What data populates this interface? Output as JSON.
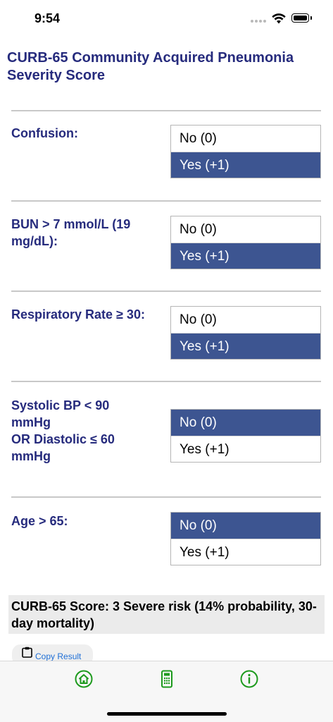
{
  "status": {
    "time": "9:54"
  },
  "title": "CURB-65 Community Acquired Pneumonia Severity Score",
  "questions": [
    {
      "label": "Confusion:",
      "options": [
        "No (0)",
        "Yes (+1)"
      ],
      "selected": 1
    },
    {
      "label": "BUN > 7 mmol/L (19 mg/dL):",
      "options": [
        "No (0)",
        "Yes (+1)"
      ],
      "selected": 1
    },
    {
      "label": "Respiratory Rate ≥ 30:",
      "options": [
        "No (0)",
        "Yes (+1)"
      ],
      "selected": 1
    },
    {
      "label": "Systolic BP < 90 mmHg OR Diastolic ≤ 60 mmHg",
      "label_lines": [
        "Systolic BP < 90",
        "mmHg",
        "OR Diastolic ≤ 60",
        "mmHg"
      ],
      "options": [
        "No (0)",
        "Yes (+1)"
      ],
      "selected": 0
    },
    {
      "label": "Age > 65:",
      "options": [
        "No (0)",
        "Yes (+1)"
      ],
      "selected": 0
    }
  ],
  "result": {
    "text": "CURB-65 Score: 3 Severe risk (14% probability, 30-day mortality)"
  },
  "copy_button": {
    "label": "Copy Result",
    "icon": "clipboard-icon"
  },
  "tab_bar": {
    "items": [
      {
        "name": "home",
        "icon": "home-icon"
      },
      {
        "name": "calculator",
        "icon": "calculator-icon"
      },
      {
        "name": "info",
        "icon": "info-icon"
      }
    ],
    "icon_color": "#1d9a1d"
  },
  "colors": {
    "title": "#262b7d",
    "selected": "#3d5591"
  }
}
